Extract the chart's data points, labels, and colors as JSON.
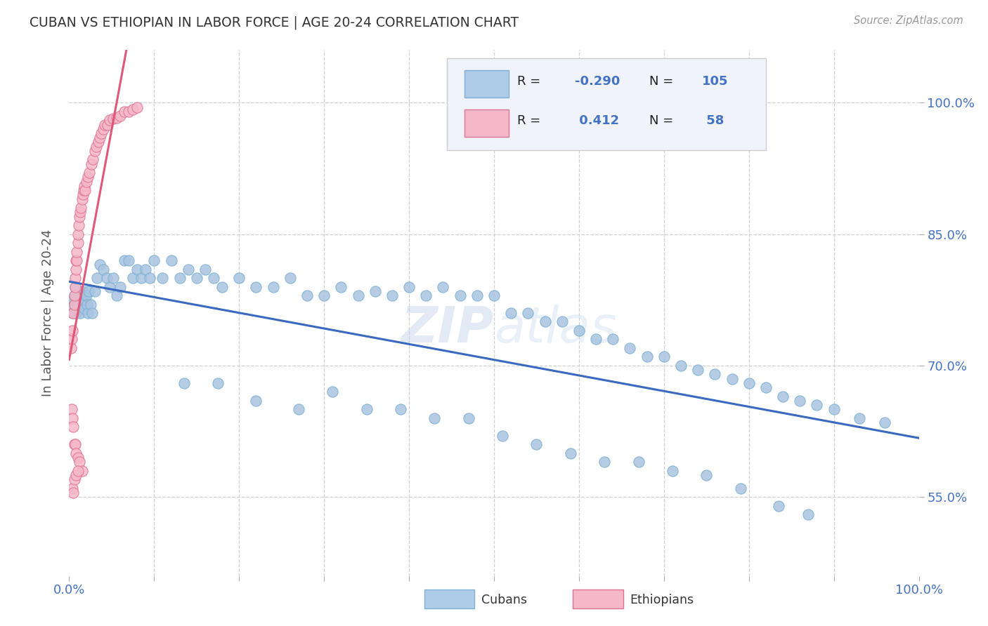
{
  "title": "CUBAN VS ETHIOPIAN IN LABOR FORCE | AGE 20-24 CORRELATION CHART",
  "source": "Source: ZipAtlas.com",
  "ylabel": "In Labor Force | Age 20-24",
  "watermark": "ZIPAtlas",
  "cubans_color": "#a8c4e0",
  "cubans_edge": "#7bafd4",
  "cubans_line": "#3a6abf",
  "ethiopians_color": "#f4b8c8",
  "ethiopians_edge": "#e07090",
  "ethiopians_line": "#e05878",
  "dashed_line_color": "#cccccc",
  "background_color": "#ffffff",
  "grid_color": "#d0d0d0",
  "xlim": [
    0.0,
    1.0
  ],
  "ylim": [
    0.46,
    1.06
  ],
  "yticks": [
    0.55,
    0.7,
    0.85,
    1.0
  ],
  "R_cubans": -0.29,
  "N_cubans": 105,
  "R_ethiopians": 0.412,
  "N_ethiopians": 58,
  "cubans_x": [
    0.003,
    0.004,
    0.005,
    0.006,
    0.007,
    0.008,
    0.009,
    0.01,
    0.011,
    0.012,
    0.013,
    0.014,
    0.015,
    0.016,
    0.017,
    0.018,
    0.019,
    0.02,
    0.021,
    0.022,
    0.023,
    0.025,
    0.027,
    0.03,
    0.033,
    0.036,
    0.04,
    0.044,
    0.048,
    0.052,
    0.056,
    0.06,
    0.065,
    0.07,
    0.075,
    0.08,
    0.085,
    0.09,
    0.095,
    0.1,
    0.11,
    0.12,
    0.13,
    0.14,
    0.15,
    0.16,
    0.17,
    0.18,
    0.2,
    0.22,
    0.24,
    0.26,
    0.28,
    0.3,
    0.32,
    0.34,
    0.36,
    0.38,
    0.4,
    0.42,
    0.44,
    0.46,
    0.48,
    0.5,
    0.52,
    0.54,
    0.56,
    0.58,
    0.6,
    0.62,
    0.64,
    0.66,
    0.68,
    0.7,
    0.72,
    0.74,
    0.76,
    0.78,
    0.8,
    0.82,
    0.84,
    0.86,
    0.88,
    0.9,
    0.93,
    0.96,
    0.135,
    0.175,
    0.22,
    0.27,
    0.31,
    0.35,
    0.39,
    0.43,
    0.47,
    0.51,
    0.55,
    0.59,
    0.63,
    0.67,
    0.71,
    0.75,
    0.79,
    0.835,
    0.87
  ],
  "cubans_y": [
    0.77,
    0.76,
    0.775,
    0.78,
    0.79,
    0.76,
    0.765,
    0.775,
    0.78,
    0.77,
    0.76,
    0.775,
    0.78,
    0.785,
    0.77,
    0.765,
    0.775,
    0.78,
    0.77,
    0.76,
    0.785,
    0.77,
    0.76,
    0.785,
    0.8,
    0.815,
    0.81,
    0.8,
    0.79,
    0.8,
    0.78,
    0.79,
    0.82,
    0.82,
    0.8,
    0.81,
    0.8,
    0.81,
    0.8,
    0.82,
    0.8,
    0.82,
    0.8,
    0.81,
    0.8,
    0.81,
    0.8,
    0.79,
    0.8,
    0.79,
    0.79,
    0.8,
    0.78,
    0.78,
    0.79,
    0.78,
    0.785,
    0.78,
    0.79,
    0.78,
    0.79,
    0.78,
    0.78,
    0.78,
    0.76,
    0.76,
    0.75,
    0.75,
    0.74,
    0.73,
    0.73,
    0.72,
    0.71,
    0.71,
    0.7,
    0.695,
    0.69,
    0.685,
    0.68,
    0.675,
    0.665,
    0.66,
    0.655,
    0.65,
    0.64,
    0.635,
    0.68,
    0.68,
    0.66,
    0.65,
    0.67,
    0.65,
    0.65,
    0.64,
    0.64,
    0.62,
    0.61,
    0.6,
    0.59,
    0.59,
    0.58,
    0.575,
    0.56,
    0.54,
    0.53
  ],
  "ethiopians_x": [
    0.002,
    0.003,
    0.004,
    0.005,
    0.006,
    0.006,
    0.007,
    0.007,
    0.008,
    0.008,
    0.009,
    0.009,
    0.01,
    0.01,
    0.011,
    0.012,
    0.013,
    0.014,
    0.015,
    0.016,
    0.017,
    0.018,
    0.019,
    0.02,
    0.022,
    0.024,
    0.026,
    0.028,
    0.03,
    0.032,
    0.034,
    0.036,
    0.038,
    0.04,
    0.042,
    0.045,
    0.048,
    0.052,
    0.056,
    0.06,
    0.065,
    0.07,
    0.075,
    0.08,
    0.003,
    0.004,
    0.005,
    0.006,
    0.007,
    0.008,
    0.01,
    0.012,
    0.015,
    0.004,
    0.005,
    0.006,
    0.008,
    0.01
  ],
  "ethiopians_y": [
    0.72,
    0.73,
    0.74,
    0.76,
    0.77,
    0.78,
    0.79,
    0.8,
    0.81,
    0.82,
    0.82,
    0.83,
    0.84,
    0.85,
    0.86,
    0.87,
    0.875,
    0.88,
    0.89,
    0.895,
    0.9,
    0.905,
    0.9,
    0.91,
    0.915,
    0.92,
    0.93,
    0.935,
    0.945,
    0.95,
    0.955,
    0.96,
    0.965,
    0.97,
    0.975,
    0.975,
    0.98,
    0.982,
    0.983,
    0.985,
    0.99,
    0.99,
    0.992,
    0.995,
    0.65,
    0.64,
    0.63,
    0.61,
    0.61,
    0.6,
    0.595,
    0.59,
    0.58,
    0.56,
    0.555,
    0.57,
    0.575,
    0.58
  ]
}
